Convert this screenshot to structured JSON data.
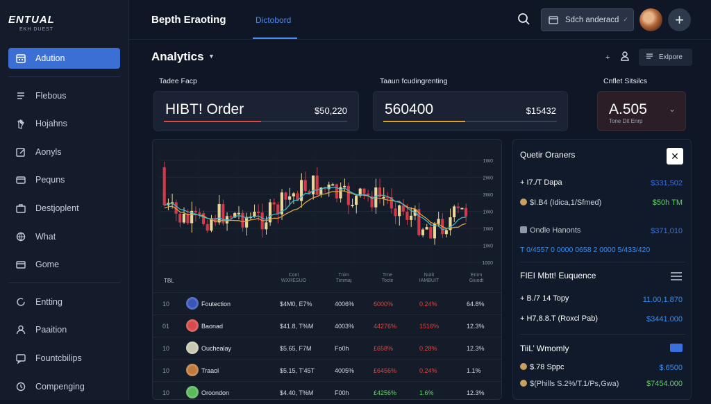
{
  "brand": {
    "logo": "ENTUAL",
    "logo_sub": "EKH DUEST"
  },
  "sidebar": {
    "items": [
      {
        "label": "Adution",
        "icon": "calendar-icon"
      },
      {
        "label": "Flebous",
        "icon": "list-icon"
      },
      {
        "label": "Hojahns",
        "icon": "hand-icon"
      },
      {
        "label": "Aonyls",
        "icon": "edit-icon"
      },
      {
        "label": "Pequns",
        "icon": "folder-icon"
      },
      {
        "label": "Destjoplent",
        "icon": "briefcase-icon"
      },
      {
        "label": "What",
        "icon": "globe-icon"
      },
      {
        "label": "Gome",
        "icon": "box-icon"
      }
    ],
    "items2": [
      {
        "label": "Entting",
        "icon": "refresh-icon"
      },
      {
        "label": "Paaition",
        "icon": "user-icon"
      },
      {
        "label": "Fountcbilips",
        "icon": "chat-icon"
      },
      {
        "label": "Compenging",
        "icon": "doc-icon"
      }
    ]
  },
  "header": {
    "title": "Bepth Eraoting",
    "tab": "Dictobord",
    "select_label": "Sdch anderacd",
    "select_chev": "✓"
  },
  "analytics": {
    "title": "Analytics",
    "toolbar_plus": "+",
    "explore_label": "Exlpore"
  },
  "cards": [
    {
      "label": "Tadee Facp",
      "big": "HIBT! Order",
      "small": "$50,220",
      "accent": "#e0473f",
      "progress": 0.53
    },
    {
      "label": "Taaun fcudingrenting",
      "big": "560400",
      "small": "$15432",
      "accent": "#e0a030",
      "progress": 0.47
    },
    {
      "label": "Cnflet Sitsilcs",
      "big": "A.505",
      "sub": "Tone Dit Enrp"
    }
  ],
  "chart_data": {
    "type": "candlestick",
    "y_ticks": [
      "1W0",
      "2W0",
      "3W0",
      "1W0",
      "1W0",
      "1W0",
      "1000"
    ],
    "ylim": [
      1000,
      7000
    ]
  },
  "table": {
    "headers": [
      "TBL",
      "Cont\nWXRESUO",
      "Tnim\nTimmaj",
      "Trne\nTocte",
      "Nutit\nIAMBUIT",
      "Emm\nGiuodt"
    ],
    "rows": [
      {
        "rank": "10",
        "name": "Foutection",
        "price": "$4M0, E7%",
        "c2": "4006%",
        "c3": "6000%",
        "c4": "0.24%",
        "c5": "64.8%",
        "c3color": "#e0473f",
        "c4color": "#e0473f",
        "coin": "#3a56b8"
      },
      {
        "rank": "01",
        "name": "Baonad",
        "price": "$41.8, T%M",
        "c2": "4003%",
        "c3": "44276%",
        "c4": "1516%",
        "c5": "12.3%",
        "c3color": "#e0473f",
        "c4color": "#e0473f",
        "coin": "#d94a4a"
      },
      {
        "rank": "10",
        "name": "Ouchealay",
        "price": "$5.65, F7M",
        "c2": "Fo0h",
        "c3": "£658%",
        "c4": "0.28%",
        "c5": "12.3%",
        "c3color": "#e0473f",
        "c4color": "#e0473f",
        "coin": "#c8c8b0"
      },
      {
        "rank": "10",
        "name": "Traaol",
        "price": "$5.15, T'45T",
        "c2": "4005%",
        "c3": "£6456%",
        "c4": "0.24%",
        "c5": "1.1%",
        "c3color": "#e0473f",
        "c4color": "#e0473f",
        "coin": "#c07a3a"
      },
      {
        "rank": "10",
        "name": "Oroondon",
        "price": "$4.40, T%M",
        "c2": "F00h",
        "c3": "£4256%",
        "c4": "1.6%",
        "c5": "12.3%",
        "c3color": "#5bd65b",
        "c4color": "#5bd65b",
        "coin": "#5bb85b"
      }
    ]
  },
  "right_panel": {
    "title": "Quetir Oraners",
    "close": "✕",
    "lines": [
      {
        "label": "+ I7./T Dapa",
        "value": "$331,502",
        "lcolor": "#fff",
        "vcolor": "#3a6fe0",
        "pluscolor": "#5bd65b"
      },
      {
        "label": "$I.B4 (Idica,1/Sfmed)",
        "value": "$50h TM",
        "lcolor": "#d5dbe5",
        "vcolor": "#5bd65b"
      },
      {
        "label": "Ondle Hanonts",
        "value": "$371,010",
        "lcolor": "#c5ccd8",
        "vcolor": "#3a6fe0"
      },
      {
        "label": "T 0/4557  0 0000 0658  2 0000 5/433/420",
        "value": "",
        "lcolor": "#3a8ff0",
        "vcolor": "#3a8ff0"
      }
    ],
    "section2_title": "FIEI Mbtt! Euquence",
    "section2_lines": [
      {
        "label": "+ B./7 14 Topy",
        "value": "11.00,1.870",
        "pluscolor": "#5bd65b",
        "vcolor": "#3a8ff0"
      },
      {
        "label": "+ H7,8.8.T (Roxcl Pab)",
        "value": "$3441.000",
        "pluscolor": "#e0473f",
        "vcolor": "#3a8ff0"
      }
    ],
    "section3_title": "TiiL’ Wmomly",
    "section3_lines": [
      {
        "label": "$.78 Sppc",
        "value": "$.6500",
        "vcolor": "#3a8ff0"
      },
      {
        "label": "$(Phills S.2%/T.1/Ps,Gwa)",
        "value": "$7454.000",
        "vcolor": "#5bd65b"
      }
    ]
  }
}
